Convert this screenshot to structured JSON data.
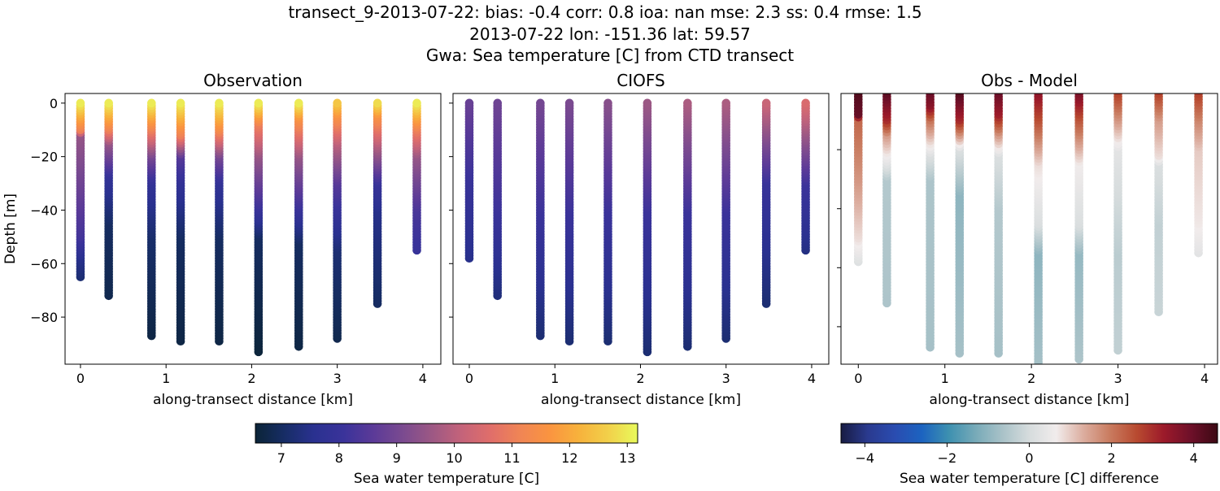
{
  "title_lines": [
    "transect_9-2013-07-22: bias: -0.4  corr: 0.8  ioa: nan  mse: 2.3  ss: 0.4  rmse: 1.5",
    "2013-07-22 lon: -151.36 lat: 59.57",
    "Gwa: Sea temperature [C] from CTD transect"
  ],
  "stations_km": [
    0,
    0.33,
    0.83,
    1.17,
    1.62,
    2.08,
    2.55,
    3.0,
    3.47,
    3.93
  ],
  "chart_data": [
    {
      "type": "scatter",
      "title": "Observation",
      "xlabel": "along-transect distance [km]",
      "ylabel": "Depth [m]",
      "xlim": [
        -0.18,
        4.21
      ],
      "ylim": [
        -97.6,
        3.6
      ],
      "xticks": [
        0,
        1,
        2,
        3,
        4
      ],
      "xtick_labels": [
        "0",
        "1",
        "2",
        "3",
        "4"
      ],
      "yticks": [
        0,
        -20,
        -40,
        -60,
        -80
      ],
      "ytick_labels": [
        "0",
        "−20",
        "−40",
        "−60",
        "−80"
      ],
      "colormap": "thermal",
      "profiles": [
        [
          [
            0,
            13.0
          ],
          [
            -10,
            11.0
          ],
          [
            -12,
            9.5
          ],
          [
            -50,
            8.2
          ],
          [
            -58,
            7.5
          ],
          [
            -65,
            7.2
          ]
        ],
        [
          [
            0,
            13.0
          ],
          [
            -10,
            11.0
          ],
          [
            -15,
            9.5
          ],
          [
            -28,
            7.8
          ],
          [
            -45,
            7.0
          ],
          [
            -72,
            6.8
          ]
        ],
        [
          [
            0,
            13.0
          ],
          [
            -10,
            11.0
          ],
          [
            -20,
            9.0
          ],
          [
            -30,
            7.8
          ],
          [
            -50,
            7.1
          ],
          [
            -87,
            6.7
          ]
        ],
        [
          [
            0,
            13.0
          ],
          [
            -12,
            11.0
          ],
          [
            -20,
            8.5
          ],
          [
            -30,
            7.8
          ],
          [
            -50,
            7.0
          ],
          [
            -89,
            6.7
          ]
        ],
        [
          [
            0,
            13.0
          ],
          [
            -10,
            11.3
          ],
          [
            -20,
            9.0
          ],
          [
            -30,
            7.8
          ],
          [
            -50,
            7.0
          ],
          [
            -89,
            6.7
          ]
        ],
        [
          [
            0,
            13.0
          ],
          [
            -8,
            11.0
          ],
          [
            -20,
            9.5
          ],
          [
            -40,
            8.0
          ],
          [
            -50,
            7.0
          ],
          [
            -93,
            6.6
          ]
        ],
        [
          [
            0,
            13.0
          ],
          [
            -6,
            11.5
          ],
          [
            -20,
            9.5
          ],
          [
            -40,
            8.0
          ],
          [
            -52,
            7.0
          ],
          [
            -91,
            6.7
          ]
        ],
        [
          [
            0,
            12.5
          ],
          [
            -5,
            11.5
          ],
          [
            -15,
            10.0
          ],
          [
            -30,
            8.5
          ],
          [
            -55,
            7.2
          ],
          [
            -88,
            6.8
          ]
        ],
        [
          [
            0,
            12.8
          ],
          [
            -5,
            11.5
          ],
          [
            -15,
            10.0
          ],
          [
            -30,
            8.0
          ],
          [
            -40,
            7.5
          ],
          [
            -75,
            7.0
          ]
        ],
        [
          [
            0,
            13.0
          ],
          [
            -10,
            11.0
          ],
          [
            -20,
            9.5
          ],
          [
            -40,
            8.3
          ],
          [
            -55,
            8.0
          ]
        ]
      ]
    },
    {
      "type": "scatter",
      "title": "CIOFS",
      "xlabel": "along-transect distance [km]",
      "xlim": [
        -0.19,
        4.2
      ],
      "ylim": [
        -97.6,
        3.6
      ],
      "xticks": [
        0,
        1,
        2,
        3,
        4
      ],
      "xtick_labels": [
        "0",
        "1",
        "2",
        "3",
        "4"
      ],
      "yticks": [
        0,
        -20,
        -40,
        -60,
        -80
      ],
      "colormap": "thermal",
      "profiles": [
        [
          [
            0,
            8.8
          ],
          [
            -30,
            8.0
          ],
          [
            -58,
            7.5
          ]
        ],
        [
          [
            0,
            8.9
          ],
          [
            -40,
            8.1
          ],
          [
            -72,
            7.3
          ]
        ],
        [
          [
            0,
            9.0
          ],
          [
            -40,
            8.1
          ],
          [
            -87,
            7.2
          ]
        ],
        [
          [
            0,
            9.1
          ],
          [
            -40,
            8.1
          ],
          [
            -89,
            7.2
          ]
        ],
        [
          [
            0,
            9.3
          ],
          [
            -40,
            8.1
          ],
          [
            -89,
            7.2
          ]
        ],
        [
          [
            0,
            9.6
          ],
          [
            -40,
            8.1
          ],
          [
            -93,
            7.2
          ]
        ],
        [
          [
            0,
            9.8
          ],
          [
            -40,
            8.1
          ],
          [
            -91,
            7.2
          ]
        ],
        [
          [
            0,
            9.8
          ],
          [
            -40,
            8.1
          ],
          [
            -88,
            7.2
          ]
        ],
        [
          [
            0,
            10.2
          ],
          [
            -30,
            8.0
          ],
          [
            -75,
            7.2
          ]
        ],
        [
          [
            0,
            10.5
          ],
          [
            -30,
            8.1
          ],
          [
            -55,
            7.4
          ]
        ]
      ]
    },
    {
      "type": "scatter",
      "title": "Obs - Model",
      "xlabel": "along-transect distance [km]",
      "xlim": [
        -0.2,
        4.15
      ],
      "ylim": [
        -92.7,
        -0.96
      ],
      "xticks": [
        0,
        1,
        2,
        3,
        4
      ],
      "xtick_labels": [
        "0",
        "1",
        "2",
        "3",
        "4"
      ],
      "yticks": [
        -20,
        -40,
        -60,
        -80
      ],
      "colormap": "balance",
      "profiles": [
        [
          [
            0,
            4.3
          ],
          [
            -8,
            4.0
          ],
          [
            -10,
            2.2
          ],
          [
            -30,
            1.6
          ],
          [
            -50,
            0.8
          ],
          [
            -58,
            0.2
          ]
        ],
        [
          [
            0,
            4.2
          ],
          [
            -10,
            3.0
          ],
          [
            -15,
            1.5
          ],
          [
            -25,
            0.2
          ],
          [
            -30,
            -0.5
          ],
          [
            -72,
            -0.6
          ]
        ],
        [
          [
            0,
            4.0
          ],
          [
            -5,
            3.5
          ],
          [
            -10,
            2.0
          ],
          [
            -22,
            0.1
          ],
          [
            -30,
            -0.6
          ],
          [
            -87,
            -0.7
          ]
        ],
        [
          [
            0,
            4.3
          ],
          [
            -10,
            3.0
          ],
          [
            -15,
            1.5
          ],
          [
            -20,
            0.1
          ],
          [
            -35,
            -1.0
          ],
          [
            -89,
            -0.7
          ]
        ],
        [
          [
            0,
            4.0
          ],
          [
            -8,
            3.2
          ],
          [
            -15,
            1.5
          ],
          [
            -22,
            0.1
          ],
          [
            -40,
            -0.5
          ],
          [
            -89,
            -0.7
          ]
        ],
        [
          [
            0,
            3.5
          ],
          [
            -10,
            2.5
          ],
          [
            -25,
            0.8
          ],
          [
            -45,
            0.1
          ],
          [
            -55,
            -1.0
          ],
          [
            -93,
            -0.7
          ]
        ],
        [
          [
            0,
            3.8
          ],
          [
            -10,
            2.4
          ],
          [
            -25,
            0.6
          ],
          [
            -45,
            0.1
          ],
          [
            -55,
            -0.9
          ],
          [
            -91,
            -0.6
          ]
        ],
        [
          [
            0,
            2.8
          ],
          [
            -8,
            1.8
          ],
          [
            -20,
            0.3
          ],
          [
            -35,
            0.0
          ],
          [
            -55,
            -0.4
          ],
          [
            -88,
            -0.3
          ]
        ],
        [
          [
            0,
            2.8
          ],
          [
            -10,
            1.5
          ],
          [
            -22,
            0.8
          ],
          [
            -25,
            0.1
          ],
          [
            -45,
            -0.3
          ],
          [
            -75,
            -0.2
          ]
        ],
        [
          [
            0,
            2.8
          ],
          [
            -10,
            1.8
          ],
          [
            -20,
            1.0
          ],
          [
            -45,
            0.7
          ],
          [
            -55,
            0.3
          ]
        ]
      ]
    }
  ],
  "colorbars": [
    {
      "label": "Sea water temperature [C]",
      "range": [
        6.55,
        13.18
      ],
      "ticks": [
        7,
        8,
        9,
        10,
        11,
        12,
        13
      ],
      "tick_labels": [
        "7",
        "8",
        "9",
        "10",
        "11",
        "12",
        "13"
      ],
      "colors": [
        "#0b2437",
        "#172d66",
        "#2a3190",
        "#3a339a",
        "#5b3a98",
        "#7a4a90",
        "#9c5884",
        "#c4637a",
        "#e06e6a",
        "#f08555",
        "#fa9440",
        "#f7b23c",
        "#f2d04a",
        "#e8fa5b"
      ]
    },
    {
      "label": "Sea water temperature [C] difference",
      "range": [
        -4.58,
        4.58
      ],
      "ticks": [
        -4,
        -2,
        0,
        2,
        4
      ],
      "tick_labels": [
        "−4",
        "−2",
        "0",
        "2",
        "4"
      ],
      "colors": [
        "#181c43",
        "#2a3a8f",
        "#2a4cb0",
        "#1c63c0",
        "#3d90b0",
        "#77aab8",
        "#a9c2c8",
        "#d6dcdd",
        "#f1ecec",
        "#dcaea0",
        "#c97b5f",
        "#b84a30",
        "#9c1a2a",
        "#6e1029",
        "#3c0914"
      ]
    }
  ]
}
